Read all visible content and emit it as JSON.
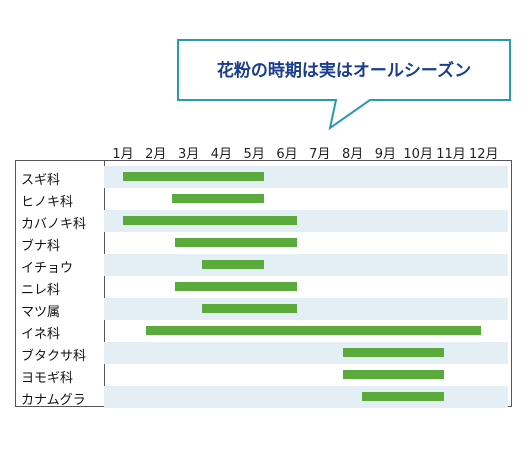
{
  "callout": {
    "title": "花粉の時期は実はオールシーズン",
    "border_color": "#2a9aad"
  },
  "colors": {
    "bar": "#5aab3c",
    "shade": "#e3eef5"
  },
  "months": [
    "1月",
    "2月",
    "3月",
    "4月",
    "5月",
    "6月",
    "7月",
    "8月",
    "9月",
    "10月",
    "11月",
    "12月"
  ],
  "chart_data": {
    "type": "gantt",
    "title": "花粉の時期は実はオールシーズン",
    "x_unit": "月",
    "xlim": [
      1,
      12
    ],
    "categories": [
      "スギ科",
      "ヒノキ科",
      "カバノキ科",
      "ブナ科",
      "イチョウ",
      "ニレ科",
      "マツ属",
      "イネ科",
      "ブタクサ科",
      "ヨモギ科",
      "カナムグラ"
    ],
    "series": [
      {
        "values": [
          [
            1.0,
            5.3
          ],
          [
            2.5,
            5.3
          ],
          [
            1.0,
            6.3
          ],
          [
            2.6,
            6.3
          ],
          [
            3.4,
            5.3
          ],
          [
            2.6,
            6.3
          ],
          [
            3.4,
            6.3
          ],
          [
            1.7,
            11.9
          ],
          [
            7.7,
            10.8
          ],
          [
            7.7,
            10.8
          ],
          [
            8.3,
            10.8
          ]
        ]
      }
    ]
  }
}
